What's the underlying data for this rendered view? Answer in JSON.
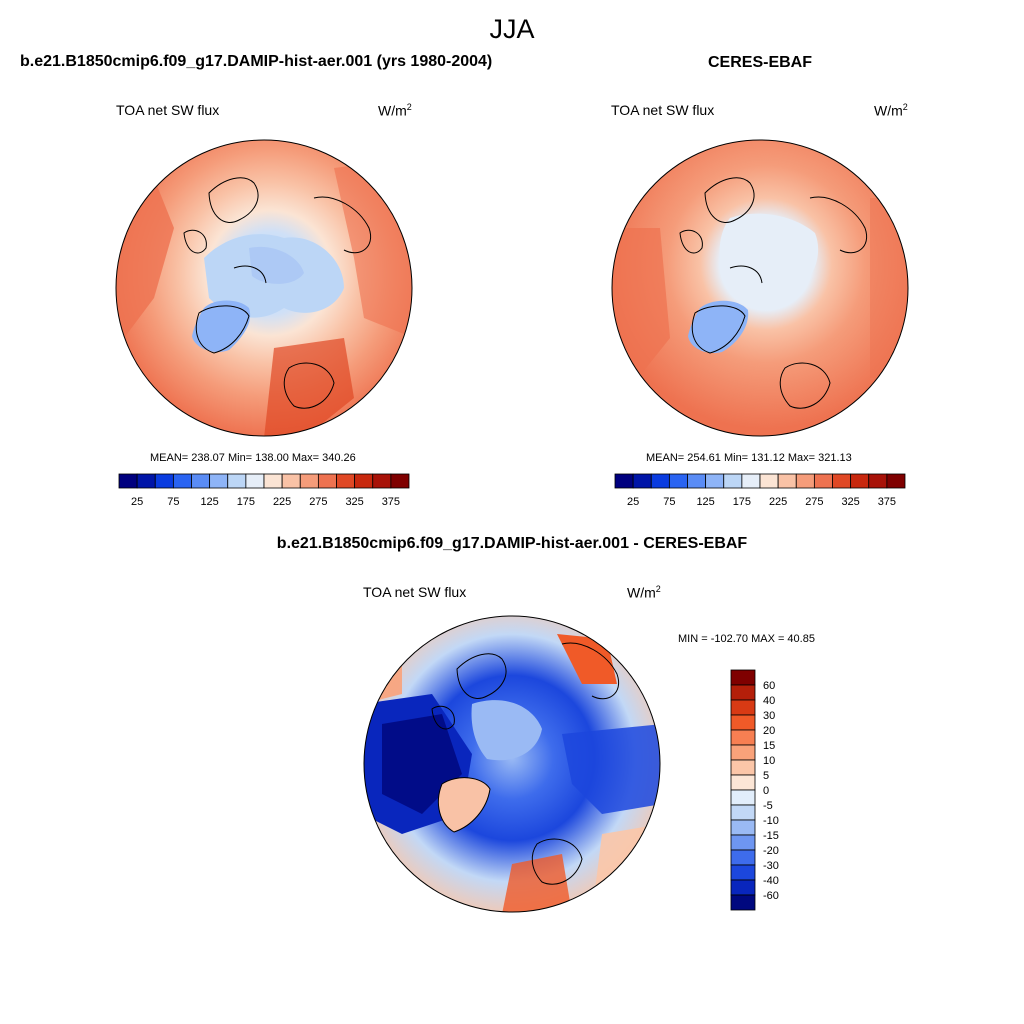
{
  "season": "JJA",
  "panels": {
    "model": {
      "title": "b.e21.B1850cmip6.f09_g17.DAMIP-hist-aer.001 (yrs 1980-2004)",
      "variable": "TOA net SW flux",
      "units_base": "W/m",
      "units_exp": "2",
      "stats_text": "MEAN= 238.07  Min= 138.00  Max= 340.26",
      "stats": {
        "mean": 238.07,
        "min": 138.0,
        "max": 340.26
      }
    },
    "obs": {
      "title": "CERES-EBAF",
      "variable": "TOA net SW flux",
      "units_base": "W/m",
      "units_exp": "2",
      "stats_text": "MEAN= 254.61  Min= 131.12  Max= 321.13",
      "stats": {
        "mean": 254.61,
        "min": 131.12,
        "max": 321.13
      }
    },
    "diff": {
      "title": "b.e21.B1850cmip6.f09_g17.DAMIP-hist-aer.001 - CERES-EBAF",
      "variable": "TOA net SW flux",
      "units_base": "W/m",
      "units_exp": "2",
      "stats_text": "MIN = -102.70 MAX =  40.85",
      "stats": {
        "min": -102.7,
        "max": 40.85
      }
    }
  },
  "colorbars": {
    "main": {
      "colors": [
        "#00007f",
        "#0015a8",
        "#0a3ce0",
        "#2a64f2",
        "#5a8cf5",
        "#8eb4f7",
        "#bcd6f6",
        "#e6eef8",
        "#fbe4d4",
        "#f9c2a6",
        "#f59c7a",
        "#ee7250",
        "#e04825",
        "#c8280e",
        "#a81208",
        "#7f0000"
      ],
      "tick_labels": [
        "25",
        "75",
        "125",
        "175",
        "225",
        "275",
        "325",
        "375"
      ]
    },
    "diff": {
      "colors": [
        "#7f0000",
        "#b41f0a",
        "#d83a14",
        "#f05a28",
        "#f77f52",
        "#f9a27a",
        "#fbc6a8",
        "#fce6d6",
        "#e2eefb",
        "#c2d8f6",
        "#9abaf4",
        "#6e96f1",
        "#3e6cec",
        "#1c47dd",
        "#0926bd",
        "#00087f"
      ],
      "tick_labels": [
        "60",
        "40",
        "30",
        "20",
        "15",
        "10",
        "5",
        "0",
        "-5",
        "-10",
        "-15",
        "-20",
        "-30",
        "-40",
        "-60"
      ]
    }
  }
}
